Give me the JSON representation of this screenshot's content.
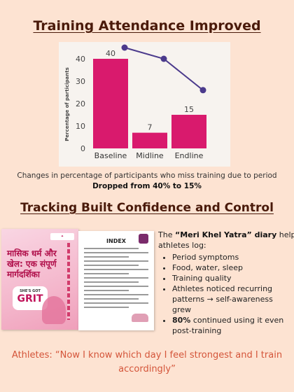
{
  "header": {
    "title": "Training Attendance Improved"
  },
  "chart_data": {
    "type": "bar",
    "categories": [
      "Baseline",
      "Midline",
      "Endline"
    ],
    "values": [
      40,
      7,
      15
    ],
    "line_values": [
      45,
      40,
      26
    ],
    "ylabel": "Percentage of participants",
    "ylim": [
      0,
      45
    ],
    "yticks": [
      "0",
      "10",
      "20",
      "30",
      "40"
    ],
    "bar_color": "#d91a6d",
    "line_color": "#4b3a8c",
    "grid": false
  },
  "caption": {
    "line1": "Changes in percentage of participants who miss training due to period",
    "line2": "Dropped from 40% to 15%"
  },
  "section2": {
    "title": "Tracking Built Confidence and Control"
  },
  "booklet": {
    "cover_title": "मासिक धर्म और खेल: एक संपूर्ण मार्गदर्शिका",
    "cover_tag": "SHE'S GOT",
    "cover_grit": "GRIT",
    "index_title": "INDEX"
  },
  "diary": {
    "intro_prefix": "The ",
    "intro_bold": "“Meri Khel Yatra” diary",
    "intro_suffix": " helped",
    "intro_line2": "athletes log:",
    "items": [
      "Period symptoms",
      "Food, water, sleep",
      "Training quality",
      "Athletes noticed recurring patterns → self-awareness grew"
    ],
    "last_bold": "80%",
    "last_rest": " continued using it even post-training"
  },
  "quote": {
    "text": "Athletes: “Now I know which day I feel strongest and I train accordingly”"
  }
}
